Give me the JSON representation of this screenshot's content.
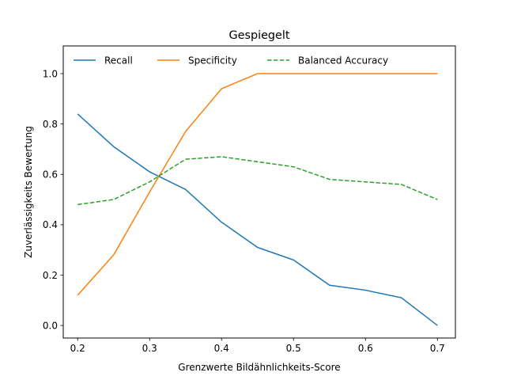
{
  "chart_data": {
    "type": "line",
    "title": "Gespiegelt",
    "xlabel": "Grenzwerte Bildähnlichkeits-Score",
    "ylabel": "Zuverlässigkeits Bewertung",
    "xlim": [
      0.18,
      0.725
    ],
    "ylim": [
      -0.05,
      1.11
    ],
    "xticks": [
      0.2,
      0.3,
      0.4,
      0.5,
      0.6,
      0.7
    ],
    "xtick_labels": [
      "0.2",
      "0.3",
      "0.4",
      "0.5",
      "0.6",
      "0.7"
    ],
    "yticks": [
      0.0,
      0.2,
      0.4,
      0.6,
      0.8,
      1.0
    ],
    "ytick_labels": [
      "0.0",
      "0.2",
      "0.4",
      "0.6",
      "0.8",
      "1.0"
    ],
    "grid": false,
    "legend_placement": "top",
    "x": [
      0.2,
      0.25,
      0.3,
      0.35,
      0.4,
      0.45,
      0.5,
      0.55,
      0.6,
      0.65,
      0.7
    ],
    "series": [
      {
        "name": "Recall",
        "color": "#1f77b4",
        "style": "solid",
        "values": [
          0.84,
          0.71,
          0.61,
          0.54,
          0.41,
          0.31,
          0.26,
          0.16,
          0.14,
          0.11,
          0.0
        ]
      },
      {
        "name": "Specificity",
        "color": "#ff7f0e",
        "style": "solid",
        "values": [
          0.12,
          0.28,
          0.53,
          0.77,
          0.94,
          1.0,
          1.0,
          1.0,
          1.0,
          1.0,
          1.0
        ]
      },
      {
        "name": "Balanced Accuracy",
        "color": "#2ca02c",
        "style": "dashed",
        "values": [
          0.48,
          0.5,
          0.57,
          0.66,
          0.67,
          0.65,
          0.63,
          0.58,
          0.57,
          0.56,
          0.5
        ]
      }
    ]
  }
}
